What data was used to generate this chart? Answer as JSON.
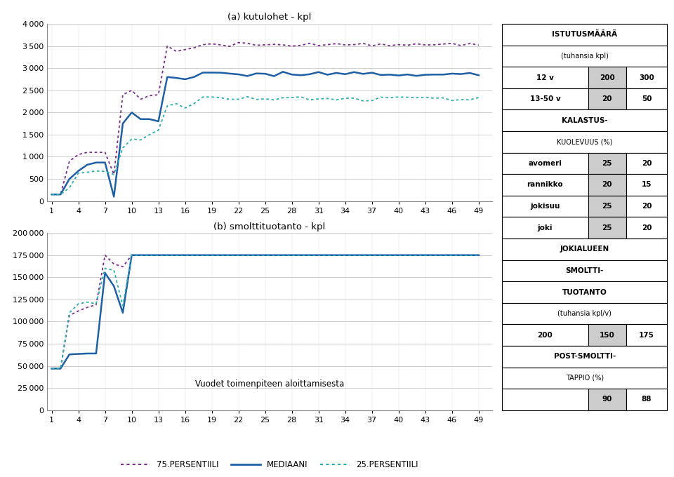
{
  "title_a": "(a) kutulohet - kpl",
  "title_b": "(b) smolttituotanto - kpl",
  "xlabel": "Vuodet toimenpiteen aloittamisesta",
  "legend_75": "75.PERSENTIILI",
  "legend_median": "MEDIAANI",
  "legend_25": "25.PERSENTIILI",
  "x_ticks": [
    1,
    4,
    7,
    10,
    13,
    16,
    19,
    22,
    25,
    28,
    31,
    34,
    37,
    40,
    43,
    46,
    49
  ],
  "color_75": "#7B2D8B",
  "color_median": "#1F5FA6",
  "color_25": "#2AAFB0",
  "ylim_a": [
    0,
    4000
  ],
  "yticks_a": [
    0,
    500,
    1000,
    1500,
    2000,
    2500,
    3000,
    3500,
    4000
  ],
  "ylim_b": [
    0,
    200000
  ],
  "yticks_b": [
    0,
    25000,
    50000,
    75000,
    100000,
    125000,
    150000,
    175000,
    200000
  ],
  "table_title1": "ISTUTUSMÄÄRÄ",
  "table_title2": "(tuhansia kpl)",
  "table_row1_label": "12 v",
  "table_row1_v1": "200",
  "table_row1_v2": "300",
  "table_row2_label": "13-50 v",
  "table_row2_v1": "20",
  "table_row2_v2": "50",
  "table_title3": "KALASTUS-",
  "table_title4": "KUOLEVUUS (%)",
  "table_r1_label": "avomeri",
  "table_r1_v1": "25",
  "table_r1_v2": "20",
  "table_r2_label": "rannikko",
  "table_r2_v1": "20",
  "table_r2_v2": "15",
  "table_r3_label": "jokisuu",
  "table_r3_v1": "25",
  "table_r3_v2": "20",
  "table_r4_label": "joki",
  "table_r4_v1": "25",
  "table_r4_v2": "20",
  "table_title5": "JOKIALUEEN",
  "table_title6": "SMOLTTI-",
  "table_title7": "TUOTANTO",
  "table_title8": "(tuhansia kpl/v)",
  "table_r5_v0": "200",
  "table_r5_v1": "150",
  "table_r5_v2": "175",
  "table_title9": "POST-SMOLTTI-",
  "table_title10": "TAPPIO (%)",
  "table_r6_v1": "90",
  "table_r6_v2": "88",
  "fig_width": 9.6,
  "fig_height": 6.8
}
